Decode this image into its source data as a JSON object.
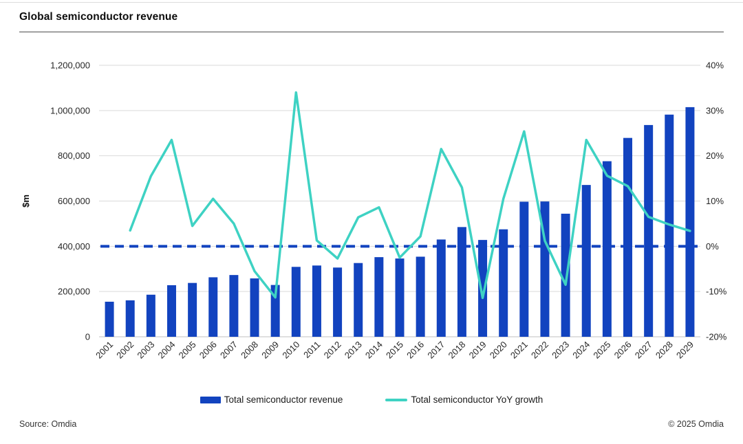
{
  "header": {
    "title": "Global semiconductor revenue"
  },
  "footer": {
    "source": "Source: Omdia",
    "copyright": "© 2025 Omdia"
  },
  "colors": {
    "bar_blue": "#1243BF",
    "line_teal": "#3ED2C3",
    "gridline": "#D9D9D9",
    "axis_line": "#BFBFBF",
    "tick_text": "#262626"
  },
  "legend": {
    "items": [
      {
        "label": "Total semiconductor revenue",
        "swatch": "bar",
        "color": "#1243BF"
      },
      {
        "label": "Total semiconductor YoY growth",
        "swatch": "line",
        "color": "#3ED2C3"
      }
    ]
  },
  "chart_data": {
    "type": "bar+line combo",
    "title": "Global semiconductor revenue",
    "categories": [
      "2001",
      "2002",
      "2003",
      "2004",
      "2005",
      "2006",
      "2007",
      "2008",
      "2009",
      "2010",
      "2011",
      "2012",
      "2013",
      "2014",
      "2015",
      "2016",
      "2017",
      "2018",
      "2019",
      "2020",
      "2021",
      "2022",
      "2023",
      "2024",
      "2025",
      "2026",
      "2027",
      "2028",
      "2029"
    ],
    "series": [
      {
        "name": "Total semiconductor revenue",
        "type": "bar",
        "axis": "left",
        "unit": "$m",
        "color": "#1243BF",
        "values": [
          155000,
          161000,
          186000,
          228000,
          238000,
          263000,
          273000,
          258000,
          229000,
          309000,
          315000,
          306000,
          326000,
          352000,
          346000,
          354000,
          430000,
          485000,
          428000,
          475000,
          597000,
          598000,
          544000,
          671000,
          776000,
          879000,
          936000,
          982000,
          1015000
        ]
      },
      {
        "name": "Total semiconductor YoY growth",
        "type": "line",
        "axis": "right",
        "unit": "%",
        "color": "#3ED2C3",
        "values": [
          null,
          3.5,
          15.5,
          23.5,
          4.5,
          10.5,
          5,
          -5.5,
          -11.3,
          34,
          1.3,
          -2.7,
          6.4,
          8.6,
          -2.5,
          2.2,
          21.5,
          13,
          -11.4,
          10.5,
          25.4,
          1.2,
          -8.5,
          23.5,
          15.6,
          13.3,
          6.5,
          4.8,
          3.4
        ]
      }
    ],
    "left_axis": {
      "label": "$m",
      "min": 0,
      "max": 1200000,
      "tick_values": [
        0,
        200000,
        400000,
        600000,
        800000,
        1000000,
        1200000
      ],
      "tick_labels": [
        "0",
        "200,000",
        "400,000",
        "600,000",
        "800,000",
        "1,000,000",
        "1,200,000"
      ]
    },
    "right_axis": {
      "min": -20,
      "max": 40,
      "tick_values": [
        -20,
        -10,
        0,
        10,
        20,
        30,
        40
      ],
      "tick_labels": [
        "-20%",
        "-10%",
        "0%",
        "10%",
        "20%",
        "30%",
        "40%"
      ]
    },
    "reference_line": {
      "axis": "right",
      "value": 0,
      "style": "dashed",
      "color": "#1243BF"
    },
    "grid": true,
    "x_label_rotation": -45,
    "legend_position": "bottom"
  }
}
